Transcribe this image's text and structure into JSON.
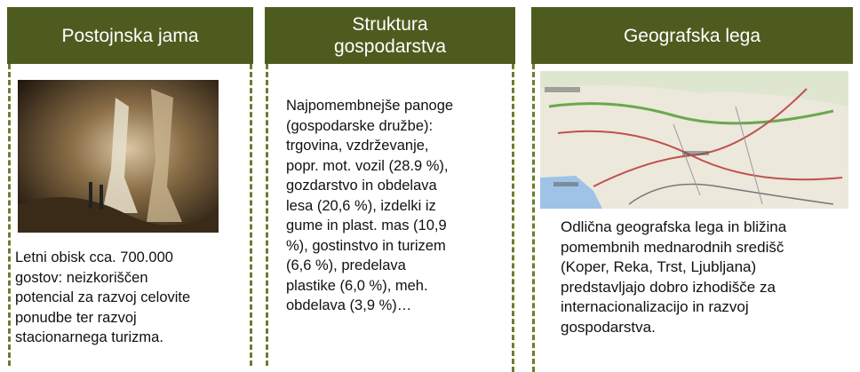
{
  "panels": [
    {
      "title": [
        "Postojnska jama"
      ],
      "text": [
        "Letni obisk cca. 700.000",
        "gostov: neizkoriščen",
        "potencial za razvoj celovite",
        "ponudbe ter razvoj",
        "stacionarnega turizma."
      ]
    },
    {
      "title": [
        "Struktura",
        "gospodarstva"
      ],
      "text": [
        "Najpomembnejše panoge",
        "(gospodarske družbe):",
        "trgovina, vzdrževanje,",
        "popr. mot. vozil (28.9 %),",
        "gozdarstvo in obdelava",
        "lesa (20,6 %), izdelki iz",
        "gume in plast. mas (10,9",
        "%), gostinstvo in turizem",
        "(6,6 %), predelava",
        "plastike (6,0 %), meh.",
        "obdelava (3,9 %)…"
      ]
    },
    {
      "title": [
        "Geografska lega"
      ],
      "text": [
        "Odlična geografska lega in bližina",
        "pomembnih mednarodnih središč",
        "(Koper, Reka, Trst, Ljubljana)",
        "predstavljajo dobro izhodišče za",
        "internacionalizacijo in razvoj",
        "gospodarstva."
      ]
    }
  ]
}
